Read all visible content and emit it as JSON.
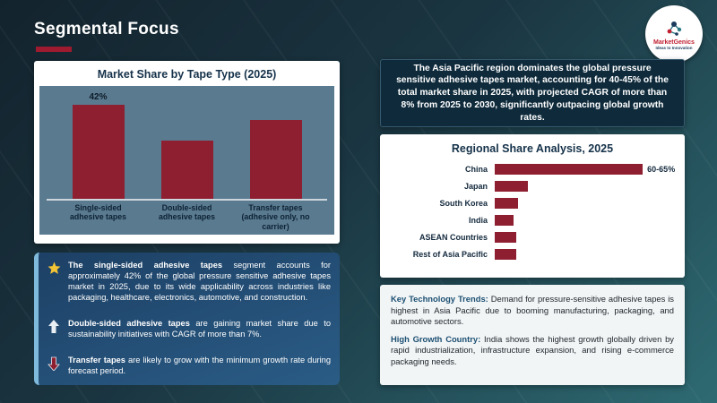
{
  "header": {
    "title": "Segmental Focus"
  },
  "logo": {
    "brand": "MarketGenics",
    "tagline": "Ideas to Innovation"
  },
  "colors": {
    "accent_red": "#9e1b2f",
    "bar_maroon": "#8e1f30",
    "summary_navy": "#0e2a3b",
    "star_yellow": "#f2c335",
    "insight_panel_blue": "#1d4065"
  },
  "chart_data": [
    {
      "type": "bar",
      "title": "Market Share by Tape Type (2025)",
      "categories": [
        "Single-sided adhesive tapes",
        "Double-sided adhesive tapes",
        "Transfer tapes (adhesive only, no carrier)"
      ],
      "values": [
        42,
        26,
        35
      ],
      "data_labels": [
        "42%",
        "",
        ""
      ],
      "ylim": [
        0,
        50
      ],
      "bar_color": "#8e1f30",
      "legend": "none",
      "grid": "off"
    },
    {
      "type": "bar",
      "orientation": "horizontal",
      "title": "Regional Share Analysis, 2025",
      "categories": [
        "China",
        "Japan",
        "South Korea",
        "India",
        "ASEAN Countries",
        "Rest of Asia Pacific"
      ],
      "values": [
        62.5,
        14,
        10,
        8,
        9,
        9
      ],
      "data_labels": [
        "60-65%",
        "",
        "",
        "",
        "",
        ""
      ],
      "xlim": [
        0,
        70
      ],
      "bar_color": "#8e1f30",
      "legend": "none",
      "grid": "off"
    }
  ],
  "insights": [
    {
      "icon": "star-icon",
      "lead": "The single-sided adhesive tapes",
      "text": " segment accounts for approximately 42% of the global pressure sensitive adhesive tapes market in 2025, due to its wide applicability across industries like packaging, healthcare, electronics, automotive, and construction."
    },
    {
      "icon": "arrow-up-icon",
      "lead": "Double-sided adhesive tapes",
      "text": " are gaining market share due to sustainability initiatives with CAGR of more than 7%."
    },
    {
      "icon": "arrow-down-icon",
      "lead": "Transfer tapes",
      "text": " are likely to grow with the minimum growth rate during forecast period."
    }
  ],
  "summary": {
    "text": "The Asia Pacific region dominates the global pressure sensitive adhesive tapes market, accounting for 40-45% of the total market share in 2025, with projected CAGR of more than 8% from 2025 to 2030, significantly outpacing global growth rates."
  },
  "notes": [
    {
      "lead": "Key Technology Trends:",
      "text": " Demand for pressure-sensitive adhesive tapes is highest in Asia Pacific due to booming manufacturing, packaging, and automotive sectors."
    },
    {
      "lead": "High Growth Country:",
      "text": " India shows the highest growth globally driven by rapid industrialization, infrastructure expansion, and rising e-commerce packaging needs."
    }
  ]
}
